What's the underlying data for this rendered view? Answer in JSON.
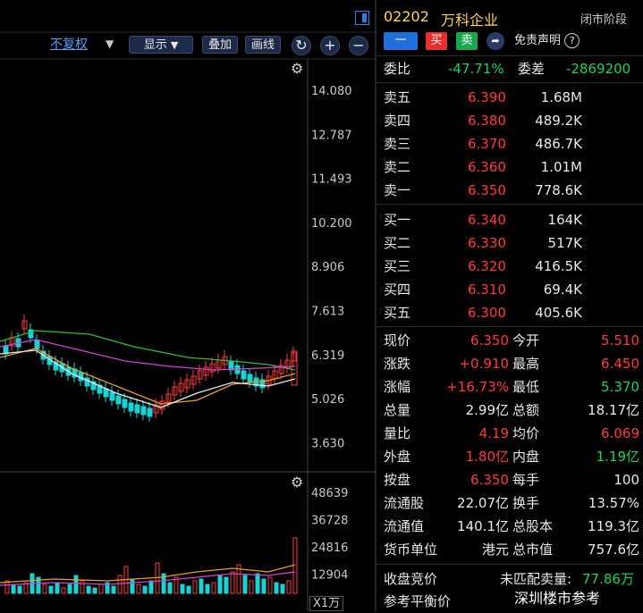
{
  "toolbar": {
    "adjust": "不复权",
    "display": "显示",
    "overlay": "叠加",
    "draw": "画线",
    "zoom_in": "+",
    "zoom_out": "−"
  },
  "price_axis": [
    "14.080",
    "12.787",
    "11.493",
    "10.200",
    "8.906",
    "7.613",
    "6.319",
    "5.026",
    "3.630"
  ],
  "volume_axis": [
    "48639",
    "36728",
    "24816",
    "12904"
  ],
  "volume_unit": "X1万",
  "stock": {
    "code": "02202",
    "name": "万科企业",
    "status": "闭市阶段",
    "disclaimer": "免责声明"
  },
  "actions": {
    "minus": "一",
    "buy": "买",
    "sell": "卖"
  },
  "commission": {
    "ratio_label": "委比",
    "ratio": "-47.71%",
    "diff_label": "委差",
    "diff": "-2869200"
  },
  "asks": [
    {
      "label": "卖五",
      "price": "6.390",
      "vol": "1.68M"
    },
    {
      "label": "卖四",
      "price": "6.380",
      "vol": "489.2K"
    },
    {
      "label": "卖三",
      "price": "6.370",
      "vol": "486.7K"
    },
    {
      "label": "卖二",
      "price": "6.360",
      "vol": "1.01M"
    },
    {
      "label": "卖一",
      "price": "6.350",
      "vol": "778.6K"
    }
  ],
  "bids": [
    {
      "label": "买一",
      "price": "6.340",
      "vol": "164K"
    },
    {
      "label": "买二",
      "price": "6.330",
      "vol": "517K"
    },
    {
      "label": "买三",
      "price": "6.320",
      "vol": "416.5K"
    },
    {
      "label": "买四",
      "price": "6.310",
      "vol": "69.4K"
    },
    {
      "label": "买五",
      "price": "6.300",
      "vol": "405.6K"
    }
  ],
  "stats": [
    {
      "l1": "现价",
      "v1": "6.350",
      "c1": "red",
      "l2": "今开",
      "v2": "5.510",
      "c2": "red"
    },
    {
      "l1": "涨跌",
      "v1": "+0.910",
      "c1": "red",
      "l2": "最高",
      "v2": "6.450",
      "c2": "red"
    },
    {
      "l1": "涨幅",
      "v1": "+16.73%",
      "c1": "red",
      "l2": "最低",
      "v2": "5.370",
      "c2": "green"
    },
    {
      "l1": "总量",
      "v1": "2.99亿",
      "c1": "white",
      "l2": "总额",
      "v2": "18.17亿",
      "c2": "white"
    },
    {
      "l1": "量比",
      "v1": "4.19",
      "c1": "red",
      "l2": "均价",
      "v2": "6.069",
      "c2": "red"
    },
    {
      "l1": "外盘",
      "v1": "1.80亿",
      "c1": "red",
      "l2": "内盘",
      "v2": "1.19亿",
      "c2": "green"
    },
    {
      "l1": "按盘",
      "v1": "6.350",
      "c1": "red",
      "l2": "每手",
      "v2": "100",
      "c2": "white"
    },
    {
      "l1": "流通股",
      "v1": "22.07亿",
      "c1": "white",
      "l2": "换手",
      "v2": "13.57%",
      "c2": "white"
    },
    {
      "l1": "流通值",
      "v1": "140.1亿",
      "c1": "white",
      "l2": "总股本",
      "v2": "119.3亿",
      "c2": "white"
    },
    {
      "l1": "货币单位",
      "v1": "港元",
      "c1": "white",
      "l2": "总市值",
      "v2": "757.6亿",
      "c2": "white"
    }
  ],
  "auction": {
    "close_label": "收盘竞价",
    "unmatched_label": "未匹配卖量:",
    "unmatched_value": "77.86万",
    "ref_label": "参考平衡价"
  },
  "watermark": "深圳楼市参考",
  "colors": {
    "up": "#ff3a3a",
    "down": "#19d35b",
    "accent": "#1e6fd9"
  },
  "icons": [
    "gear-icon",
    "refresh-icon",
    "help-icon",
    "panel-toggle-icon"
  ]
}
